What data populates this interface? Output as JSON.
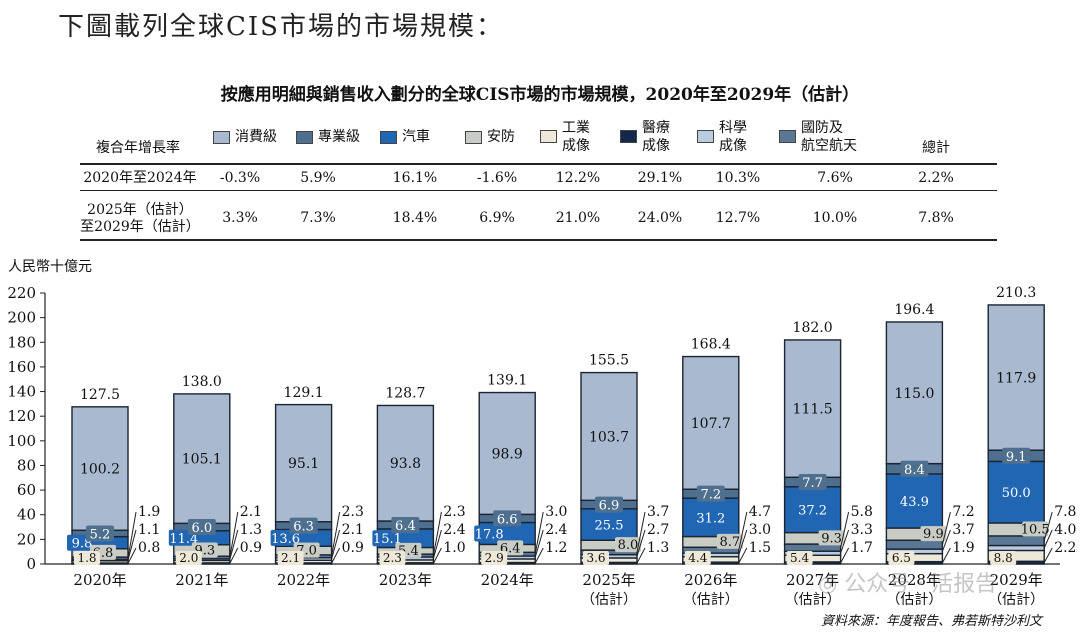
{
  "heading": "下圖載列全球CIS市場的市場規模：",
  "source": "資料來源：年度報告、弗若斯特沙利文",
  "watermark": "◎ 公众号 · 活报告",
  "colors": {
    "consumer": "#a8b9d0",
    "professional": "#4f6f8e",
    "auto": "#2166b3",
    "security": "#c9ccc4",
    "industrial": "#ede8d7",
    "medical": "#13284a",
    "science": "#b9cce0",
    "defense": "#5a7796"
  },
  "cagr_table": {
    "header_label": "複合年增長率",
    "total_label": "總計",
    "rows": [
      {
        "period": "2020年至2024年",
        "values": [
          "-0.3%",
          "5.9%",
          "16.1%",
          "-1.6%",
          "12.2%",
          "29.1%",
          "10.3%",
          "7.6%",
          "2.2%"
        ]
      },
      {
        "period": "2025年（估計）至2029年（估計）",
        "period_lines": [
          "2025年（估計）",
          "至2029年（估計）"
        ],
        "values": [
          "3.3%",
          "7.3%",
          "18.4%",
          "6.9%",
          "21.0%",
          "24.0%",
          "12.7%",
          "10.0%",
          "7.8%"
        ]
      }
    ]
  },
  "chart_data": {
    "type": "bar",
    "stacked": true,
    "title": "按應用明細與銷售收入劃分的全球CIS市場的市場規模，2020年至2029年（估計）",
    "ylabel": "人民幣十億元",
    "ylim": [
      0,
      220
    ],
    "yticks": [
      0,
      20,
      40,
      60,
      80,
      100,
      120,
      140,
      160,
      180,
      200,
      220
    ],
    "grid": false,
    "legend_position": "top",
    "categories": [
      {
        "year": "2020年",
        "note": ""
      },
      {
        "year": "2021年",
        "note": ""
      },
      {
        "year": "2022年",
        "note": ""
      },
      {
        "year": "2023年",
        "note": ""
      },
      {
        "year": "2024年",
        "note": ""
      },
      {
        "year": "2025年",
        "note": "（估計）"
      },
      {
        "year": "2026年",
        "note": "（估計）"
      },
      {
        "year": "2027年",
        "note": "（估計）"
      },
      {
        "year": "2028年",
        "note": "（估計）"
      },
      {
        "year": "2029年",
        "note": "（估計）"
      }
    ],
    "series": [
      {
        "key": "medical",
        "name": "醫療成像",
        "values": [
          0.8,
          0.9,
          0.9,
          1.0,
          1.2,
          1.3,
          1.5,
          1.7,
          1.9,
          2.2
        ]
      },
      {
        "key": "industrial",
        "name": "工業成像",
        "values": [
          1.8,
          2.0,
          2.1,
          2.3,
          2.9,
          3.6,
          4.4,
          5.4,
          6.5,
          8.8
        ]
      },
      {
        "key": "science",
        "name": "科學成像",
        "values": [
          1.1,
          1.3,
          2.1,
          2.4,
          2.4,
          2.7,
          3.0,
          3.3,
          3.7,
          4.0
        ]
      },
      {
        "key": "defense",
        "name": "國防及航空航天",
        "values": [
          1.9,
          2.1,
          2.3,
          2.3,
          3.0,
          3.7,
          4.7,
          5.8,
          7.2,
          7.8
        ]
      },
      {
        "key": "security",
        "name": "安防",
        "values": [
          6.8,
          9.3,
          7.0,
          5.4,
          6.4,
          8.0,
          8.7,
          9.3,
          9.9,
          10.5
        ]
      },
      {
        "key": "auto",
        "name": "汽車",
        "values": [
          9.8,
          11.4,
          13.6,
          15.1,
          17.8,
          25.5,
          31.2,
          37.2,
          43.9,
          50.0
        ]
      },
      {
        "key": "professional",
        "name": "專業級",
        "values": [
          5.2,
          6.0,
          6.3,
          6.4,
          6.6,
          6.9,
          7.2,
          7.7,
          8.4,
          9.1
        ]
      },
      {
        "key": "consumer",
        "name": "消費級",
        "values": [
          100.2,
          105.1,
          95.1,
          93.8,
          98.9,
          103.7,
          107.7,
          111.5,
          115.0,
          117.9
        ]
      }
    ],
    "totals": [
      127.5,
      138.0,
      129.1,
      128.7,
      139.1,
      155.5,
      168.4,
      182.0,
      196.4,
      210.3
    ],
    "legend": [
      {
        "key": "consumer",
        "label_lines": [
          "消費級"
        ]
      },
      {
        "key": "professional",
        "label_lines": [
          "專業級"
        ]
      },
      {
        "key": "auto",
        "label_lines": [
          "汽車"
        ]
      },
      {
        "key": "security",
        "label_lines": [
          "安防"
        ]
      },
      {
        "key": "industrial",
        "label_lines": [
          "工業",
          "成像"
        ]
      },
      {
        "key": "medical",
        "label_lines": [
          "醫療",
          "成像"
        ]
      },
      {
        "key": "science",
        "label_lines": [
          "科學",
          "成像"
        ]
      },
      {
        "key": "defense",
        "label_lines": [
          "國防及",
          "航空航天"
        ]
      }
    ]
  }
}
